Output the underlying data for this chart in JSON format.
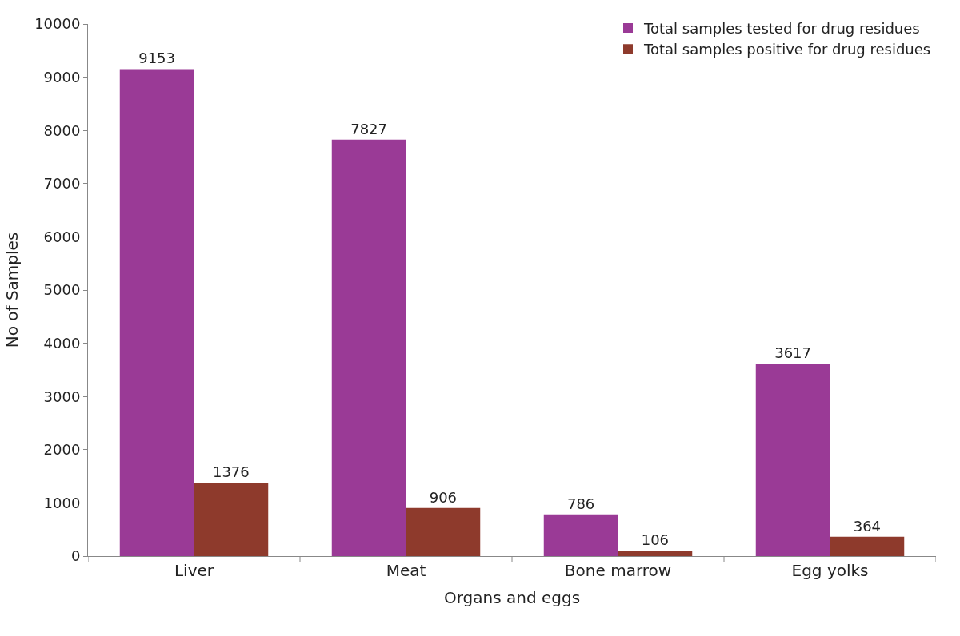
{
  "chart_data": {
    "type": "bar",
    "xlabel": "Organs and eggs",
    "ylabel": "No of Samples",
    "categories": [
      "Liver",
      "Meat",
      "Bone marrow",
      "Egg yolks"
    ],
    "series": [
      {
        "name": "Total samples tested for drug residues",
        "color": "#9a3a96",
        "values": [
          9153,
          7827,
          786,
          3617
        ]
      },
      {
        "name": "Total samples positive for drug residues",
        "color": "#8e3a2c",
        "values": [
          1376,
          906,
          106,
          364
        ]
      }
    ],
    "ylim": [
      0,
      10000
    ],
    "yticks": [
      0,
      1000,
      2000,
      3000,
      4000,
      5000,
      6000,
      7000,
      8000,
      9000,
      10000
    ],
    "legend": "top right",
    "data_labels": true
  }
}
